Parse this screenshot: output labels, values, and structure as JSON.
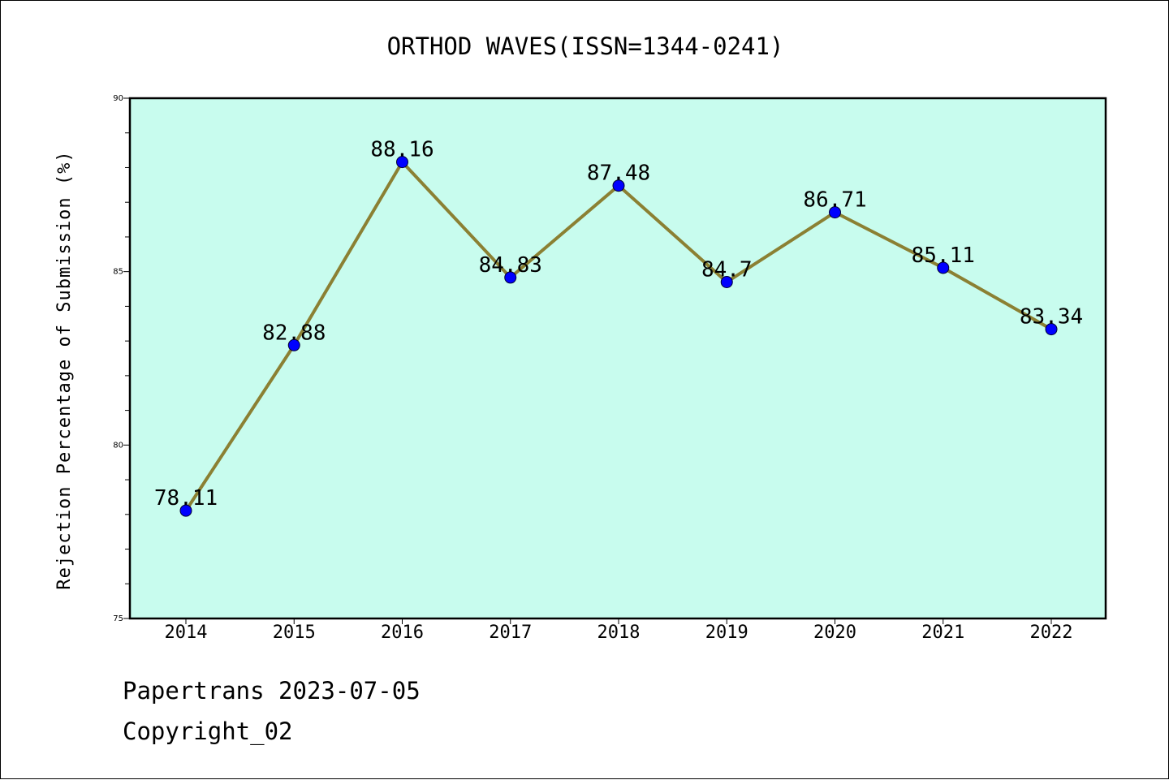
{
  "chart_data": {
    "type": "line",
    "title": "ORTHOD WAVES(ISSN=1344-0241)",
    "xlabel": "",
    "ylabel": "Rejection Percentage of Submission (%)",
    "categories": [
      "2014",
      "2015",
      "2016",
      "2017",
      "2018",
      "2019",
      "2020",
      "2021",
      "2022"
    ],
    "series": [
      {
        "values": [
          78.11,
          82.88,
          88.16,
          84.83,
          87.48,
          84.7,
          86.71,
          85.11,
          83.34
        ],
        "labels": [
          "78.11",
          "82.88",
          "88.16",
          "84.83",
          "87.48",
          "84.7",
          "86.71",
          "85.11",
          "83.34"
        ]
      }
    ],
    "ylim": [
      75,
      90
    ],
    "yticks": [
      "75",
      "80",
      "85",
      "90"
    ],
    "grid": false,
    "legend": "none",
    "colors": {
      "plot_background": "#c8fcee",
      "line": "#8b8033",
      "marker": "#0000ff"
    }
  },
  "footer": {
    "line1": "Papertrans 2023-07-05",
    "line2": "Copyright_02"
  }
}
